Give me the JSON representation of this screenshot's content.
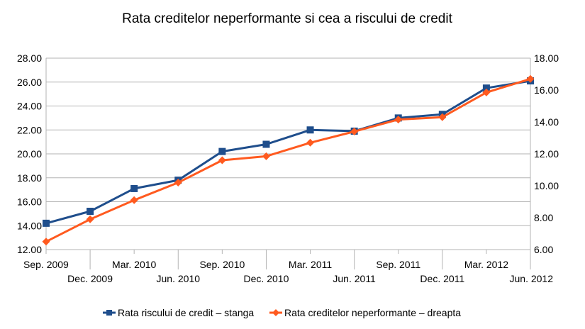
{
  "chart_data": {
    "type": "line",
    "title": "Rata creditelor neperformante si cea a riscului de credit",
    "xlabel": "",
    "ylabel": "",
    "categories": [
      "Sep. 2009",
      "Dec. 2009",
      "Mar. 2010",
      "Jun. 2010",
      "Sep. 2010",
      "Dec. 2010",
      "Mar. 2011",
      "Jun. 2011",
      "Sep. 2011",
      "Dec. 2011",
      "Mar. 2012",
      "Jun. 2012"
    ],
    "y_left": {
      "ylim": [
        12,
        28
      ],
      "ticks": [
        "12.00",
        "14.00",
        "16.00",
        "18.00",
        "20.00",
        "22.00",
        "24.00",
        "26.00",
        "28.00"
      ]
    },
    "y_right": {
      "ylim": [
        6,
        18
      ],
      "ticks": [
        "6.00",
        "8.00",
        "10.00",
        "12.00",
        "14.00",
        "16.00",
        "18.00"
      ]
    },
    "grid": true,
    "legend_position": "bottom",
    "series": [
      {
        "name": "Rata riscului de credit – stanga",
        "axis": "left",
        "color": "#1f4e8c",
        "marker": "square",
        "values": [
          14.2,
          15.2,
          17.1,
          17.8,
          20.2,
          20.8,
          22.0,
          21.9,
          23.0,
          23.3,
          25.5,
          26.1
        ]
      },
      {
        "name": "Rata creditelor neperformante – dreapta",
        "axis": "right",
        "color": "#ff5a1f",
        "marker": "diamond",
        "values": [
          6.5,
          7.9,
          9.1,
          10.2,
          11.6,
          11.85,
          12.7,
          13.4,
          14.15,
          14.3,
          15.85,
          16.7
        ]
      }
    ]
  }
}
